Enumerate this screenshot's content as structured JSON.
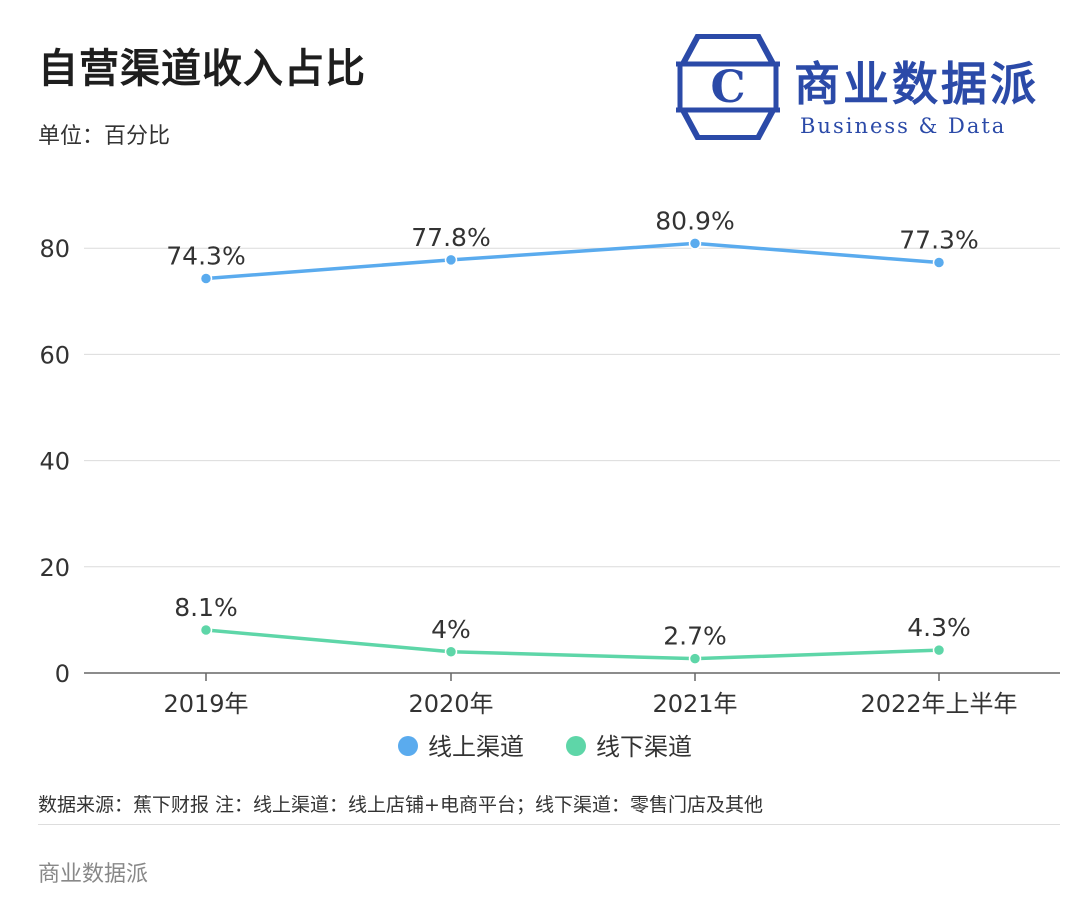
{
  "header": {
    "title": "自营渠道收入占比",
    "unit": "单位：百分比"
  },
  "logo": {
    "letter": "C",
    "name_cn": "商业数据派",
    "name_en": "Business & Data",
    "color": "#2b4aa8"
  },
  "chart_data": {
    "type": "line",
    "categories": [
      "2019年",
      "2020年",
      "2021年",
      "2022年上半年"
    ],
    "series": [
      {
        "name": "线上渠道",
        "values": [
          74.3,
          77.8,
          80.9,
          77.3
        ],
        "labels": [
          "74.3%",
          "77.8%",
          "80.9%",
          "77.3%"
        ],
        "color": "#5aabee"
      },
      {
        "name": "线下渠道",
        "values": [
          8.1,
          4,
          2.7,
          4.3
        ],
        "labels": [
          "8.1%",
          "4%",
          "2.7%",
          "4.3%"
        ],
        "color": "#5ed6a8"
      }
    ],
    "y_ticks": [
      "0",
      "20",
      "40",
      "60",
      "80"
    ],
    "ylim": [
      0,
      90
    ],
    "grid": true,
    "legend_position": "bottom-center"
  },
  "footer": {
    "note": "数据来源：蕉下财报 注：线上渠道：线上店铺+电商平台；线下渠道：零售门店及其他",
    "brand": "商业数据派"
  }
}
